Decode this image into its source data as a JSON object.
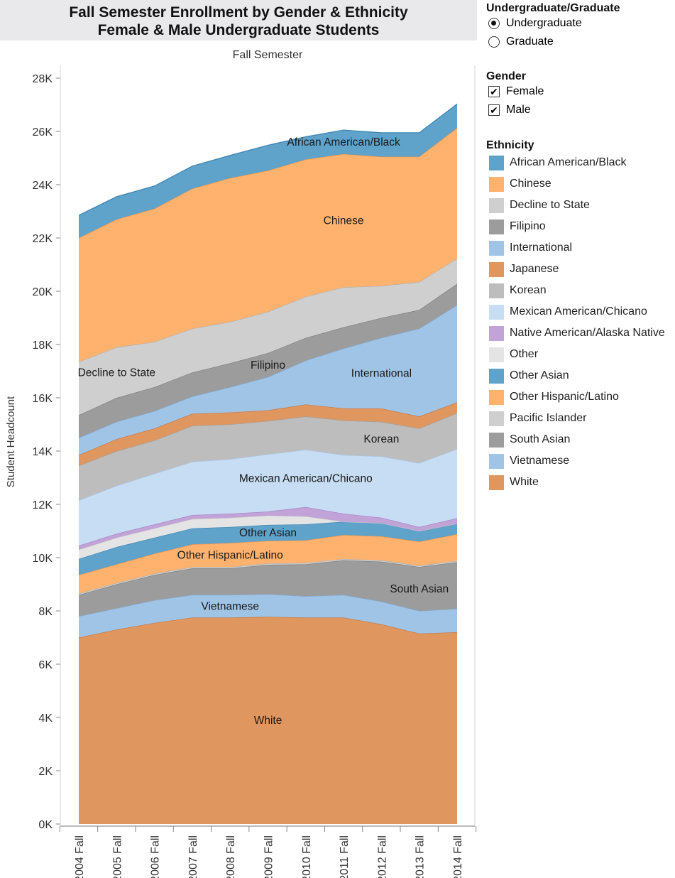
{
  "title_line1": "Fall Semester Enrollment by Gender & Ethnicity",
  "title_line2": "Female & Male Undergraduate Students",
  "filters": {
    "level": {
      "heading": "Undergraduate/Graduate",
      "options": [
        {
          "label": "Undergraduate",
          "selected": true
        },
        {
          "label": "Graduate",
          "selected": false
        }
      ]
    },
    "gender": {
      "heading": "Gender",
      "options": [
        {
          "label": "Female",
          "checked": true
        },
        {
          "label": "Male",
          "checked": true
        }
      ]
    },
    "ethnicity": {
      "heading": "Ethnicity",
      "check_mark": "✔"
    }
  },
  "chart_data": {
    "type": "area",
    "stacked": true,
    "top_label": "Fall Semester",
    "ylabel": "Student Headcount",
    "xlabel": "",
    "ylim": [
      0,
      28000
    ],
    "y_ticks": [
      0,
      2000,
      4000,
      6000,
      8000,
      10000,
      12000,
      14000,
      16000,
      18000,
      20000,
      22000,
      24000,
      26000,
      28000
    ],
    "y_tick_labels": [
      "0K",
      "2K",
      "4K",
      "6K",
      "8K",
      "10K",
      "12K",
      "14K",
      "16K",
      "18K",
      "20K",
      "22K",
      "24K",
      "26K",
      "28K"
    ],
    "categories": [
      "2004 Fall",
      "2005 Fall",
      "2006 Fall",
      "2007 Fall",
      "2008 Fall",
      "2009 Fall",
      "2010 Fall",
      "2011 Fall",
      "2012 Fall",
      "2013 Fall",
      "2014 Fall"
    ],
    "legend": [
      {
        "name": "African American/Black",
        "color": "#5fa2ca"
      },
      {
        "name": "Chinese",
        "color": "#ffb26e"
      },
      {
        "name": "Decline to State",
        "color": "#cfcfcf"
      },
      {
        "name": "Filipino",
        "color": "#9c9c9c"
      },
      {
        "name": "International",
        "color": "#a0c4e6"
      },
      {
        "name": "Japanese",
        "color": "#e0975f"
      },
      {
        "name": "Korean",
        "color": "#bdbdbd"
      },
      {
        "name": "Mexican American/Chicano",
        "color": "#c6ddf3"
      },
      {
        "name": "Native American/Alaska Native",
        "color": "#c1a3d8"
      },
      {
        "name": "Other",
        "color": "#e4e4e4"
      },
      {
        "name": "Other Asian",
        "color": "#5fa2ca"
      },
      {
        "name": "Other Hispanic/Latino",
        "color": "#ffb26e"
      },
      {
        "name": "Pacific Islander",
        "color": "#cfcfcf"
      },
      {
        "name": "South Asian",
        "color": "#9c9c9c"
      },
      {
        "name": "Vietnamese",
        "color": "#a0c4e6"
      },
      {
        "name": "White",
        "color": "#e0975f"
      }
    ],
    "series": [
      {
        "name": "White",
        "color": "#e0975f",
        "line": "#c9773e",
        "label": "White",
        "label_at": 5,
        "values": [
          7000,
          7300,
          7550,
          7750,
          7750,
          7780,
          7750,
          7750,
          7500,
          7150,
          7200
        ]
      },
      {
        "name": "Vietnamese",
        "color": "#a0c4e6",
        "line": "#82acd6",
        "label": "Vietnamese",
        "label_at": 4,
        "values": [
          800,
          800,
          850,
          850,
          850,
          850,
          800,
          850,
          850,
          850,
          880
        ]
      },
      {
        "name": "South Asian",
        "color": "#9c9c9c",
        "line": "#808080",
        "label": "South Asian",
        "label_at": 9,
        "values": [
          800,
          900,
          950,
          1000,
          1000,
          1100,
          1200,
          1300,
          1500,
          1650,
          1750
        ]
      },
      {
        "name": "Pacific Islander",
        "color": "#cfcfcf",
        "line": "#b0b0b0",
        "values": [
          50,
          50,
          50,
          50,
          50,
          50,
          50,
          50,
          50,
          50,
          50
        ]
      },
      {
        "name": "Other Hispanic/Latino",
        "color": "#ffb26e",
        "line": "#f0954a",
        "label": "Other Hispanic/Latino",
        "label_at": 4,
        "values": [
          700,
          700,
          750,
          850,
          900,
          850,
          850,
          900,
          900,
          900,
          1000
        ]
      },
      {
        "name": "Other Asian",
        "color": "#5fa2ca",
        "line": "#3f84b3",
        "label": "Other Asian",
        "label_at": 5,
        "values": [
          600,
          650,
          600,
          600,
          600,
          600,
          600,
          500,
          500,
          400,
          400
        ]
      },
      {
        "name": "Other",
        "color": "#e4e4e4",
        "line": "#c8c8c8",
        "values": [
          350,
          350,
          350,
          350,
          350,
          350,
          300,
          0,
          0,
          0,
          0
        ]
      },
      {
        "name": "Native American/Alaska Native",
        "color": "#c1a3d8",
        "line": "#a684c4",
        "values": [
          150,
          150,
          150,
          150,
          150,
          150,
          350,
          300,
          200,
          150,
          200
        ]
      },
      {
        "name": "Mexican American/Chicano",
        "color": "#c6ddf3",
        "line": "#a9c8e8",
        "label": "Mexican American/Chicano",
        "label_at": 6,
        "values": [
          1700,
          1800,
          1900,
          2000,
          2050,
          2150,
          2150,
          2200,
          2300,
          2400,
          2600
        ]
      },
      {
        "name": "Korean",
        "color": "#bdbdbd",
        "line": "#a0a0a0",
        "label": "Korean",
        "label_at": 8,
        "values": [
          1300,
          1300,
          1250,
          1350,
          1300,
          1250,
          1250,
          1300,
          1300,
          1300,
          1350
        ]
      },
      {
        "name": "Japanese",
        "color": "#e0975f",
        "line": "#c9773e",
        "values": [
          400,
          450,
          450,
          450,
          450,
          400,
          450,
          450,
          500,
          450,
          400
        ]
      },
      {
        "name": "International",
        "color": "#a0c4e6",
        "line": "#82acd6",
        "label": "International",
        "label_at": 8,
        "values": [
          650,
          650,
          650,
          650,
          950,
          1250,
          1650,
          2250,
          2650,
          3300,
          3650
        ]
      },
      {
        "name": "Filipino",
        "color": "#9c9c9c",
        "line": "#808080",
        "label": "Filipino",
        "label_at": 5,
        "values": [
          850,
          900,
          900,
          900,
          900,
          900,
          850,
          800,
          750,
          700,
          800
        ]
      },
      {
        "name": "Decline to State",
        "color": "#cfcfcf",
        "line": "#b0b0b0",
        "label": "Decline to State",
        "label_at": 1,
        "values": [
          2000,
          1900,
          1700,
          1650,
          1550,
          1550,
          1550,
          1500,
          1200,
          1050,
          950
        ]
      },
      {
        "name": "Chinese",
        "color": "#ffb26e",
        "line": "#f0954a",
        "label": "Chinese",
        "label_at": 7,
        "values": [
          4650,
          4800,
          5000,
          5250,
          5400,
          5300,
          5150,
          5000,
          4850,
          4700,
          4900
        ]
      },
      {
        "name": "African American/Black",
        "color": "#5fa2ca",
        "line": "#3f84b3",
        "label": "African American/Black",
        "label_at": 7,
        "values": [
          850,
          850,
          850,
          850,
          850,
          950,
          850,
          900,
          900,
          900,
          900
        ]
      }
    ]
  }
}
